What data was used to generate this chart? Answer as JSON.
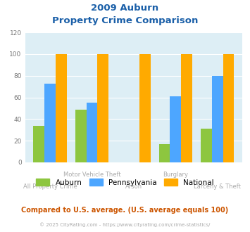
{
  "title_line1": "2009 Auburn",
  "title_line2": "Property Crime Comparison",
  "categories": [
    "All Property Crime",
    "Motor Vehicle Theft",
    "Arson",
    "Burglary",
    "Larceny & Theft"
  ],
  "series": {
    "Auburn": [
      34,
      49,
      0,
      17,
      31
    ],
    "Pennsylvania": [
      73,
      55,
      0,
      61,
      80
    ],
    "National": [
      100,
      100,
      100,
      100,
      100
    ]
  },
  "colors": {
    "Auburn": "#8dc63f",
    "Pennsylvania": "#4da6ff",
    "National": "#ffaa00"
  },
  "ylim": [
    0,
    120
  ],
  "yticks": [
    0,
    20,
    40,
    60,
    80,
    100,
    120
  ],
  "plot_bg": "#ddeef5",
  "fig_bg": "#ffffff",
  "title_color": "#1a5fa8",
  "label_color": "#aaaaaa",
  "footer_text": "Compared to U.S. average. (U.S. average equals 100)",
  "credit_text": "© 2025 CityRating.com - https://www.cityrating.com/crime-statistics/",
  "footer_color": "#cc5500",
  "credit_color": "#aaaaaa",
  "series_names": [
    "Auburn",
    "Pennsylvania",
    "National"
  ],
  "x_labels_top": [
    "",
    "Motor Vehicle Theft",
    "",
    "Burglary",
    ""
  ],
  "x_labels_bot": [
    "All Property Crime",
    "",
    "Arson",
    "",
    "Larceny & Theft"
  ]
}
